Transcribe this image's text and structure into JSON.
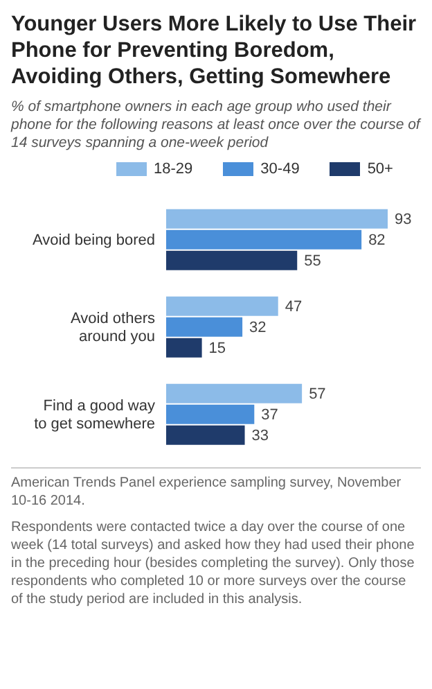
{
  "chart_data": {
    "type": "bar",
    "orientation": "horizontal",
    "title": "Younger Users More Likely to Use Their Phone for Preventing Boredom, Avoiding Others, Getting Somewhere",
    "subtitle": "% of smartphone owners in each age group who used their phone for the following reasons at least once over the course of 14 surveys spanning a one-week period",
    "categories": [
      "Avoid being bored",
      "Avoid others around you",
      "Find a good way to get somewhere"
    ],
    "series": [
      {
        "name": "18-29",
        "color": "#8cbbe8",
        "values": [
          93,
          47,
          57
        ]
      },
      {
        "name": "30-49",
        "color": "#4a8fd9",
        "values": [
          82,
          32,
          37
        ]
      },
      {
        "name": "50+",
        "color": "#1f3b6b",
        "values": [
          55,
          15,
          33
        ]
      }
    ],
    "data_labels": true,
    "legend": "top",
    "grid": false,
    "tick_labels": "y",
    "annotations": [
      "American Trends Panel experience sampling survey, November 10-16 2014.",
      "Respondents were contacted twice a day over the course of one week (14 total surveys) and asked how they had used their phone in the preceding hour (besides completing the survey). Only those respondents who completed 10 or more surveys over the course of the study period are included in this analysis."
    ]
  }
}
